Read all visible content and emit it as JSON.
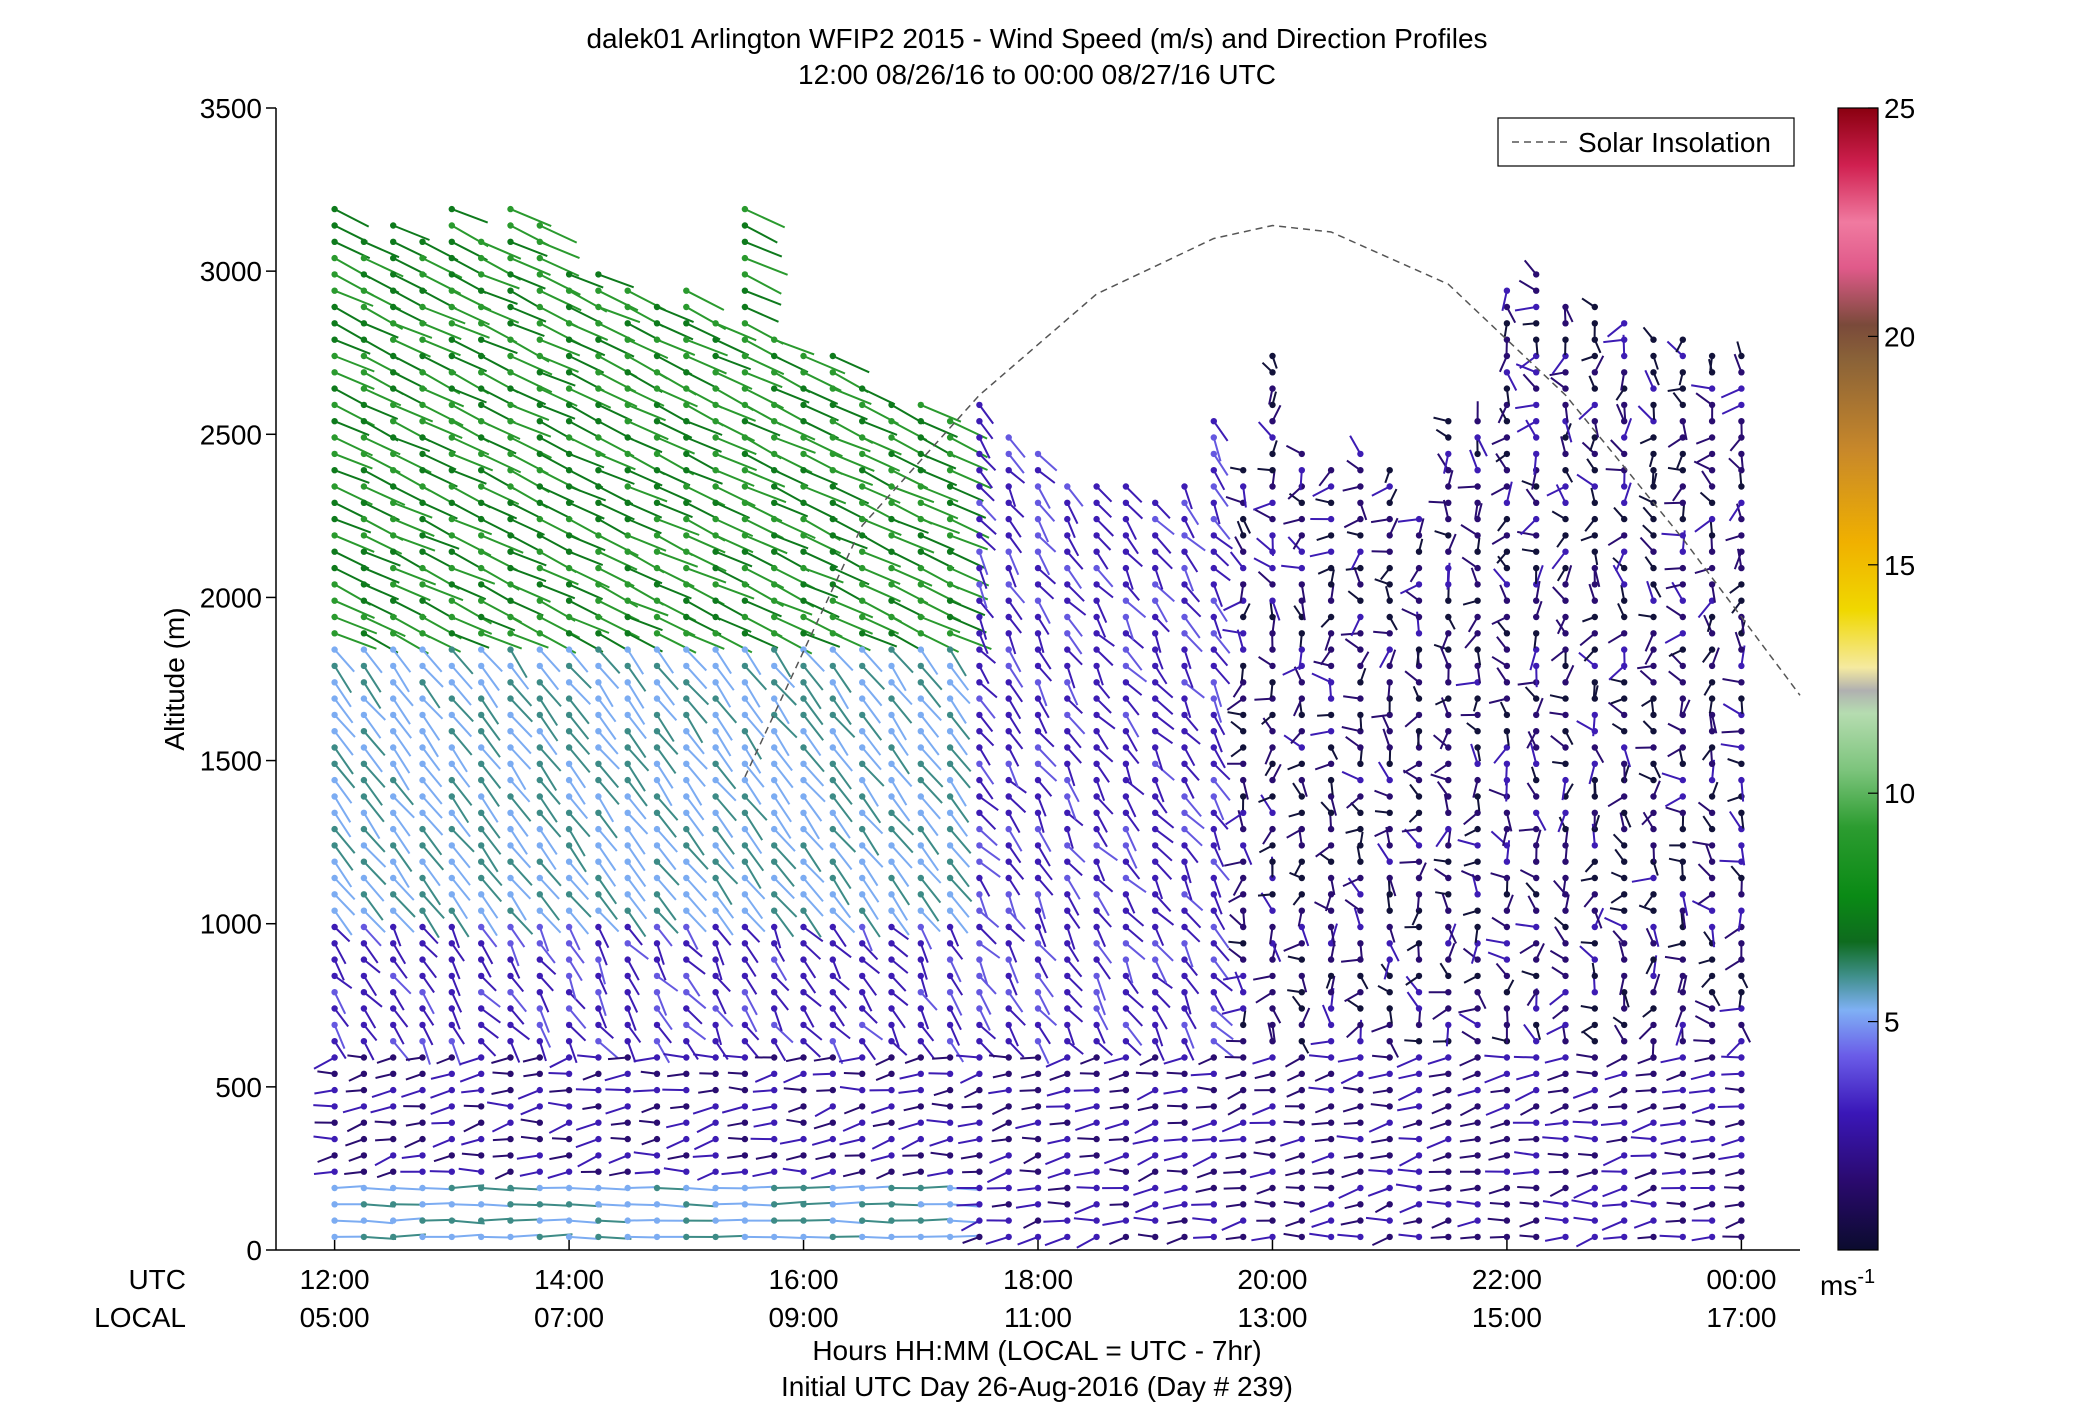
{
  "chart_data": {
    "type": "wind-barb-profile",
    "title": "dalek01 Arlington WFIP2 2015 - Wind Speed (m/s) and Direction Profiles",
    "subtitle": "12:00 08/26/16 to 00:00 08/27/16  UTC",
    "ylabel": "Altitude (m)",
    "ylim": [
      0,
      3500
    ],
    "yticks": [
      "0",
      "500",
      "1000",
      "1500",
      "2000",
      "2500",
      "3000",
      "3500"
    ],
    "xlim_utc_hours": [
      11.5,
      24.5
    ],
    "x_row_labels": {
      "utc": "UTC",
      "local": "LOCAL"
    },
    "xticks_utc": [
      "12:00",
      "14:00",
      "16:00",
      "18:00",
      "20:00",
      "22:00",
      "00:00"
    ],
    "xticks_local": [
      "05:00",
      "07:00",
      "09:00",
      "11:00",
      "13:00",
      "15:00",
      "17:00"
    ],
    "xlabel": "Hours HH:MM  (LOCAL = UTC - 7hr)",
    "xlabel2": "Initial UTC Day 26-Aug-2016 (Day # 239)",
    "legend": {
      "position": "top-right",
      "entries": [
        {
          "name": "Solar Insolation",
          "style": "dashed",
          "color": "#555555"
        }
      ]
    },
    "colorbar": {
      "range": [
        0,
        25
      ],
      "ticks": [
        "5",
        "10",
        "15",
        "20",
        "25"
      ],
      "unit_label": "ms",
      "unit_exp": "-1"
    },
    "solar_insolation": {
      "utc_hours": [
        15.5,
        16.5,
        17.5,
        18.5,
        19.5,
        20.0,
        20.5,
        21.5,
        22.5,
        23.5,
        24.5
      ],
      "altitude_m": [
        1450,
        2220,
        2620,
        2930,
        3100,
        3140,
        3120,
        2960,
        2620,
        2180,
        1700
      ]
    },
    "profile_times_utc": [
      12.0,
      12.25,
      12.5,
      12.75,
      13.0,
      13.25,
      13.5,
      13.75,
      14.0,
      14.25,
      14.5,
      14.75,
      15.0,
      15.25,
      15.5,
      15.75,
      16.0,
      16.25,
      16.5,
      16.75,
      17.0,
      17.25,
      17.5,
      17.75,
      18.0,
      18.25,
      18.5,
      18.75,
      19.0,
      19.25,
      19.5,
      19.75,
      20.0,
      20.25,
      20.5,
      20.75,
      21.0,
      21.25,
      21.5,
      21.75,
      22.0,
      22.25,
      22.5,
      22.75,
      23.0,
      23.25,
      23.5,
      23.75,
      24.0
    ],
    "profile_top_altitude_m": [
      3200,
      3100,
      3150,
      3100,
      3200,
      3100,
      3200,
      3150,
      3000,
      3000,
      2950,
      2900,
      2950,
      2850,
      3200,
      2800,
      2750,
      2750,
      2650,
      2600,
      2600,
      2550,
      2600,
      2500,
      2450,
      2350,
      2350,
      2350,
      2300,
      2350,
      2550,
      2400,
      2750,
      2450,
      2400,
      2450,
      2400,
      2250,
      2550,
      2550,
      2950,
      3000,
      2900,
      2900,
      2850,
      2800,
      2800,
      2750,
      2750
    ],
    "color_scale_note": "green 6-10 m/s aloft in early hours, light blue ~5 m/s, purple-navy 0-3 m/s below"
  }
}
